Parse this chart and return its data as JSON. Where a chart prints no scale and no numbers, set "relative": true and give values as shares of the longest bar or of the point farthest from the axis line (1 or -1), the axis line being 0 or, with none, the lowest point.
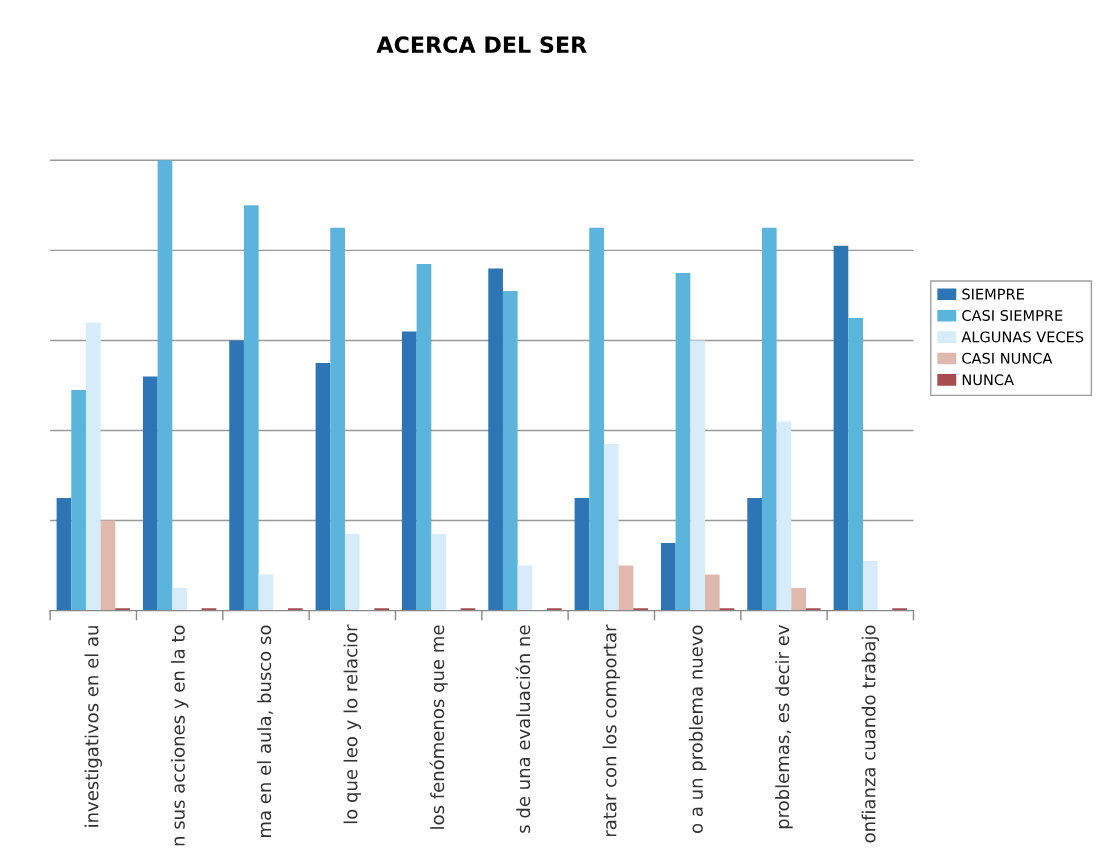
{
  "chart_data": {
    "type": "bar",
    "title": "ACERCA DEL SER",
    "relative": true,
    "grid": "y",
    "legend": "right",
    "categories": [
      "investigativos en el au",
      "n sus acciones y en la to",
      "ma en el aula, busco so",
      "lo que leo y lo relacior",
      "los fenómenos que me",
      "s de una evaluación ne",
      "ratar con los comportar",
      "o a un problema nuevo",
      "problemas, es decir ev",
      "onfianza cuando trabajo"
    ],
    "series": [
      {
        "name": "SIEMPRE",
        "color": "#2e75b6",
        "values": [
          0.25,
          0.52,
          0.6,
          0.55,
          0.62,
          0.76,
          0.25,
          0.15,
          0.25,
          0.81
        ]
      },
      {
        "name": "CASI SIEMPRE",
        "color": "#5ab4dc",
        "values": [
          0.49,
          1,
          0.9,
          0.85,
          0.77,
          0.71,
          0.85,
          0.75,
          0.85,
          0.65
        ]
      },
      {
        "name": "ALGUNAS VECES",
        "color": "#d6ecfb",
        "values": [
          0.64,
          0.05,
          0.08,
          0.17,
          0.17,
          0.1,
          0.37,
          0.6,
          0.42,
          0.11
        ]
      },
      {
        "name": "CASI NUNCA",
        "color": "#e0b9ae",
        "values": [
          0.2,
          0,
          0,
          0,
          0,
          0,
          0.1,
          0.08,
          0.05,
          0
        ]
      },
      {
        "name": "NUNCA",
        "color": "#a84c50",
        "values": [
          0.005,
          0.005,
          0.005,
          0.005,
          0.005,
          0.005,
          0.005,
          0.005,
          0.005,
          0.005
        ]
      }
    ]
  }
}
